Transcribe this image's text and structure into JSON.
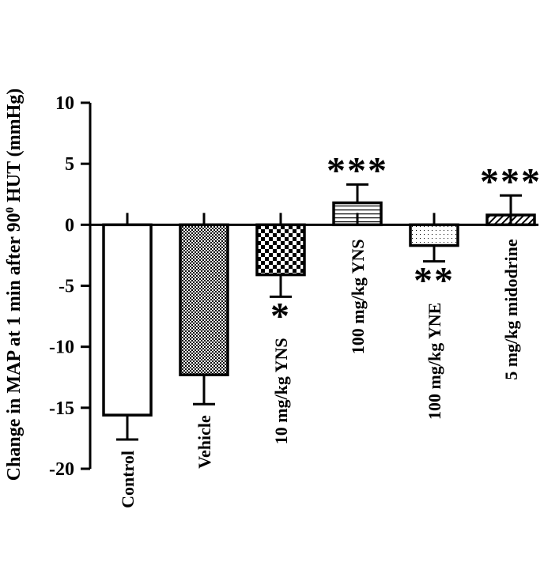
{
  "chart_data": {
    "type": "bar",
    "ylabel": "Change in MAP at 1 min after 90",
    "ylabel_superscript": "0",
    "ylabel_suffix": " HUT (mmHg)",
    "ylim": [
      -20,
      10
    ],
    "yticks": [
      10,
      5,
      0,
      -5,
      -10,
      -15,
      -20
    ],
    "categories": [
      "Control",
      "Vehicle",
      "10 mg/kg YNS",
      "100 mg/kg YNS",
      "100 mg/kg YNE",
      "5 mg/kg midodrine"
    ],
    "values": [
      -15.6,
      -12.3,
      -4.1,
      1.8,
      -1.7,
      0.8
    ],
    "errors": [
      2.0,
      2.4,
      1.8,
      1.5,
      1.3,
      1.6
    ],
    "significance": [
      "",
      "",
      "*",
      "***",
      "**",
      "***"
    ],
    "fill_patterns": [
      "solid-white",
      "fine-checker",
      "coarse-checker",
      "horizontal-lines",
      "dots",
      "diagonal-lines"
    ],
    "grid": false
  }
}
